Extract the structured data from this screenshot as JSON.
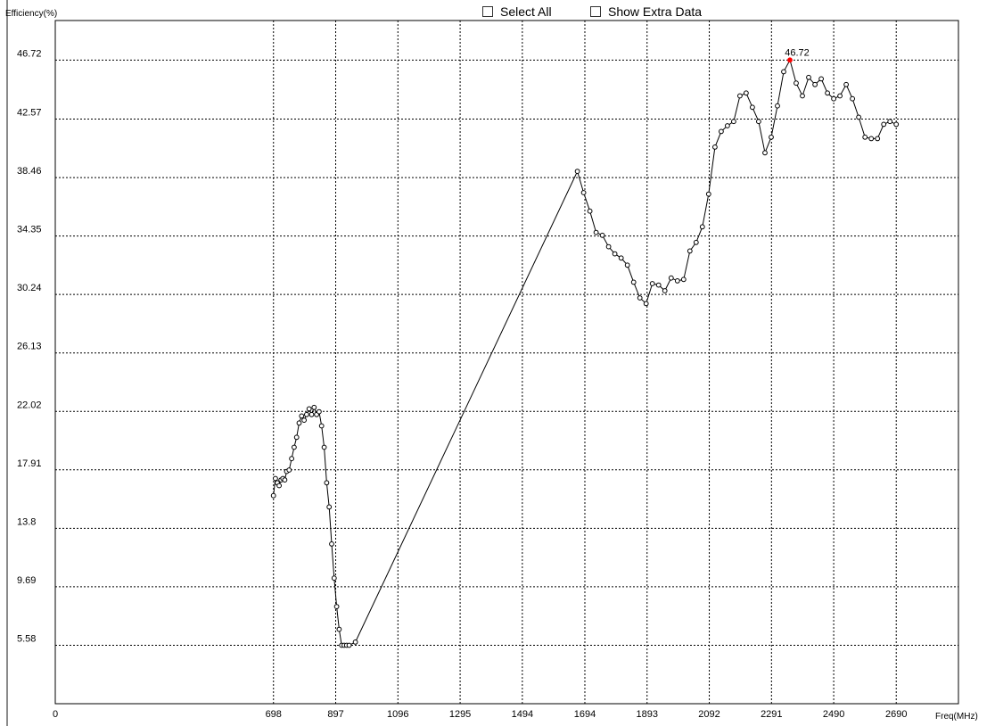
{
  "controls": {
    "select_all_label": "Select All",
    "show_extra_label": "Show Extra Data"
  },
  "chart_data": {
    "type": "line",
    "xlabel": "Freq(MHz)",
    "ylabel": "Efficiency(%)",
    "xlim": [
      0,
      2889
    ],
    "ylim": [
      1.47,
      49.5
    ],
    "x_ticks": [
      "0",
      "698",
      "897",
      "1096",
      "1295",
      "1494",
      "1694",
      "1893",
      "2092",
      "2291",
      "2490",
      "2690"
    ],
    "x_tick_values": [
      0,
      698,
      897,
      1096,
      1295,
      1494,
      1694,
      1893,
      2092,
      2291,
      2490,
      2690
    ],
    "y_ticks": [
      "5.58",
      "9.69",
      "13.8",
      "17.91",
      "22.02",
      "26.13",
      "30.24",
      "34.35",
      "38.46",
      "42.57",
      "46.72"
    ],
    "y_tick_values": [
      5.58,
      9.69,
      13.8,
      17.91,
      22.02,
      26.13,
      30.24,
      34.35,
      38.46,
      42.57,
      46.72
    ],
    "grid": true,
    "line_color": "#000000",
    "peak_color": "#ff0000",
    "peak_label": "46.72",
    "series": [
      {
        "x": [
          698,
          704,
          710,
          716,
          722,
          728,
          734,
          740,
          748,
          756,
          764,
          772,
          780,
          788,
          796,
          804,
          812,
          820,
          828,
          836,
          844,
          852,
          860,
          868,
          876,
          884,
          892,
          900,
          908,
          916,
          924,
          932,
          940,
          960,
          1670,
          1690,
          1710,
          1730,
          1750,
          1770,
          1790,
          1810,
          1830,
          1850,
          1870,
          1890,
          1910,
          1930,
          1950,
          1970,
          1990,
          2010,
          2030,
          2050,
          2070,
          2090,
          2110,
          2130,
          2150,
          2170,
          2190,
          2210,
          2230,
          2250,
          2270,
          2290,
          2310,
          2330,
          2350,
          2370,
          2390,
          2410,
          2430,
          2450,
          2470,
          2490,
          2510,
          2530,
          2550,
          2570,
          2590,
          2610,
          2630,
          2650,
          2670,
          2690
        ],
        "y": [
          16.1,
          17.3,
          17.0,
          16.8,
          17.2,
          17.3,
          17.2,
          17.8,
          17.9,
          18.7,
          19.5,
          20.2,
          21.2,
          21.7,
          21.4,
          21.8,
          22.2,
          21.8,
          22.3,
          21.8,
          22.0,
          21.0,
          19.5,
          17.0,
          15.3,
          12.7,
          10.3,
          8.3,
          6.7,
          5.58,
          5.58,
          5.58,
          5.58,
          5.8,
          38.9,
          37.4,
          36.1,
          34.6,
          34.4,
          33.6,
          33.1,
          32.8,
          32.3,
          31.1,
          30.0,
          29.6,
          31.0,
          30.9,
          30.5,
          31.4,
          31.2,
          31.3,
          33.3,
          33.9,
          35.0,
          37.3,
          40.6,
          41.7,
          42.1,
          42.4,
          44.2,
          44.4,
          43.4,
          42.4,
          40.2,
          41.3,
          43.5,
          45.9,
          46.72,
          45.1,
          44.2,
          45.5,
          45.0,
          45.4,
          44.4,
          44.0,
          44.2,
          45.0,
          44.0,
          42.7,
          41.3,
          41.2,
          41.2,
          42.2,
          42.4,
          42.2
        ]
      }
    ]
  }
}
